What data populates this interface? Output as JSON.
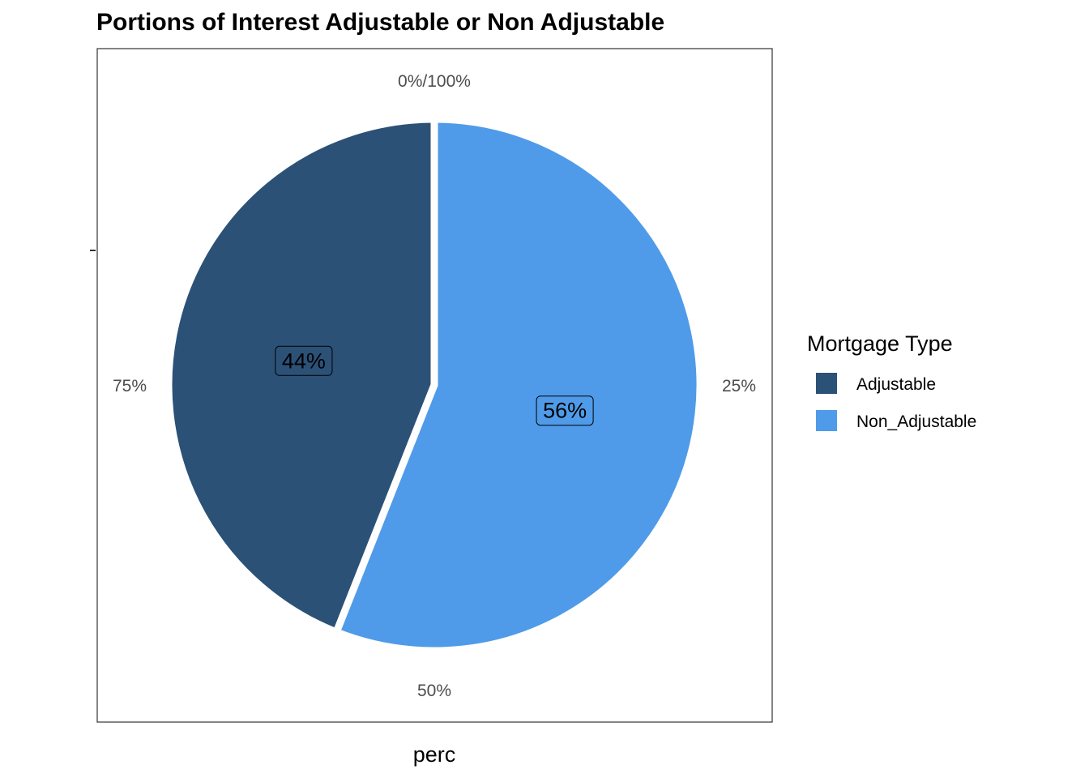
{
  "chart_data": {
    "type": "pie",
    "title": "Portions of Interest Adjustable or Non Adjustable",
    "xlabel": "perc",
    "ylabel": "",
    "categories": [
      "Adjustable",
      "Non_Adjustable"
    ],
    "values": [
      0.44,
      0.56
    ],
    "slice_labels": [
      "44%",
      "56%"
    ],
    "colors": [
      "#2c5177",
      "#4f9be9"
    ],
    "angle_ticks": [
      {
        "value": 0,
        "label": "0%/100%"
      },
      {
        "value": 0.25,
        "label": "25%"
      },
      {
        "value": 0.5,
        "label": "50%"
      },
      {
        "value": 0.75,
        "label": "75%"
      }
    ],
    "direction": "counterclockwise",
    "legend": {
      "title": "Mortgage Type",
      "position": "right"
    },
    "panel_border": true,
    "grid": false
  }
}
